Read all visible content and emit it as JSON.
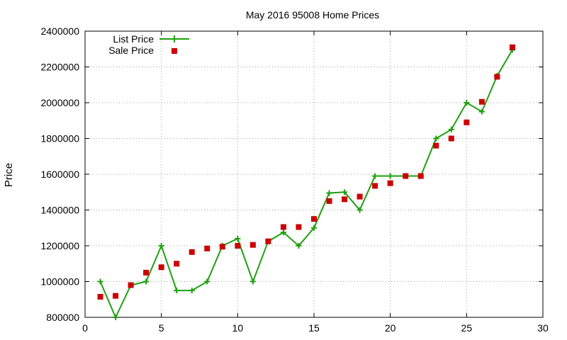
{
  "chart_data": {
    "type": "line",
    "title": "May 2016 95008 Home Prices",
    "xlabel": "",
    "ylabel": "Price",
    "xlim": [
      0,
      30
    ],
    "ylim": [
      800000,
      2400000
    ],
    "xticks": [
      0,
      5,
      10,
      15,
      20,
      25,
      30
    ],
    "yticks": [
      800000,
      1000000,
      1200000,
      1400000,
      1600000,
      1800000,
      2000000,
      2200000,
      2400000
    ],
    "grid": true,
    "legend_position": "top-left",
    "series": [
      {
        "name": "List Price",
        "style": "line with plus markers",
        "color": "#1fa010",
        "x": [
          1,
          2,
          3,
          4,
          5,
          6,
          7,
          8,
          9,
          10,
          11,
          12,
          13,
          14,
          15,
          16,
          17,
          18,
          19,
          20,
          21,
          22,
          23,
          24,
          25,
          26,
          27,
          28
        ],
        "y": [
          1000000,
          800000,
          980000,
          1000000,
          1200000,
          950000,
          950000,
          1000000,
          1200000,
          1240000,
          1000000,
          1225000,
          1275000,
          1200000,
          1300000,
          1495000,
          1500000,
          1400000,
          1590000,
          1590000,
          1590000,
          1590000,
          1800000,
          1850000,
          2000000,
          1950000,
          2150000,
          2295000
        ]
      },
      {
        "name": "Sale Price",
        "style": "square markers",
        "color": "#cc0000",
        "x": [
          1,
          2,
          3,
          4,
          5,
          6,
          7,
          8,
          9,
          10,
          11,
          12,
          13,
          14,
          15,
          16,
          17,
          18,
          19,
          20,
          21,
          22,
          23,
          24,
          25,
          26,
          27,
          28
        ],
        "y": [
          915000,
          920000,
          980000,
          1050000,
          1080000,
          1100000,
          1165000,
          1185000,
          1195000,
          1200000,
          1205000,
          1225000,
          1305000,
          1305000,
          1350000,
          1450000,
          1460000,
          1475000,
          1535000,
          1550000,
          1590000,
          1590000,
          1760000,
          1800000,
          1890000,
          2005000,
          2145000,
          2310000
        ]
      }
    ]
  }
}
